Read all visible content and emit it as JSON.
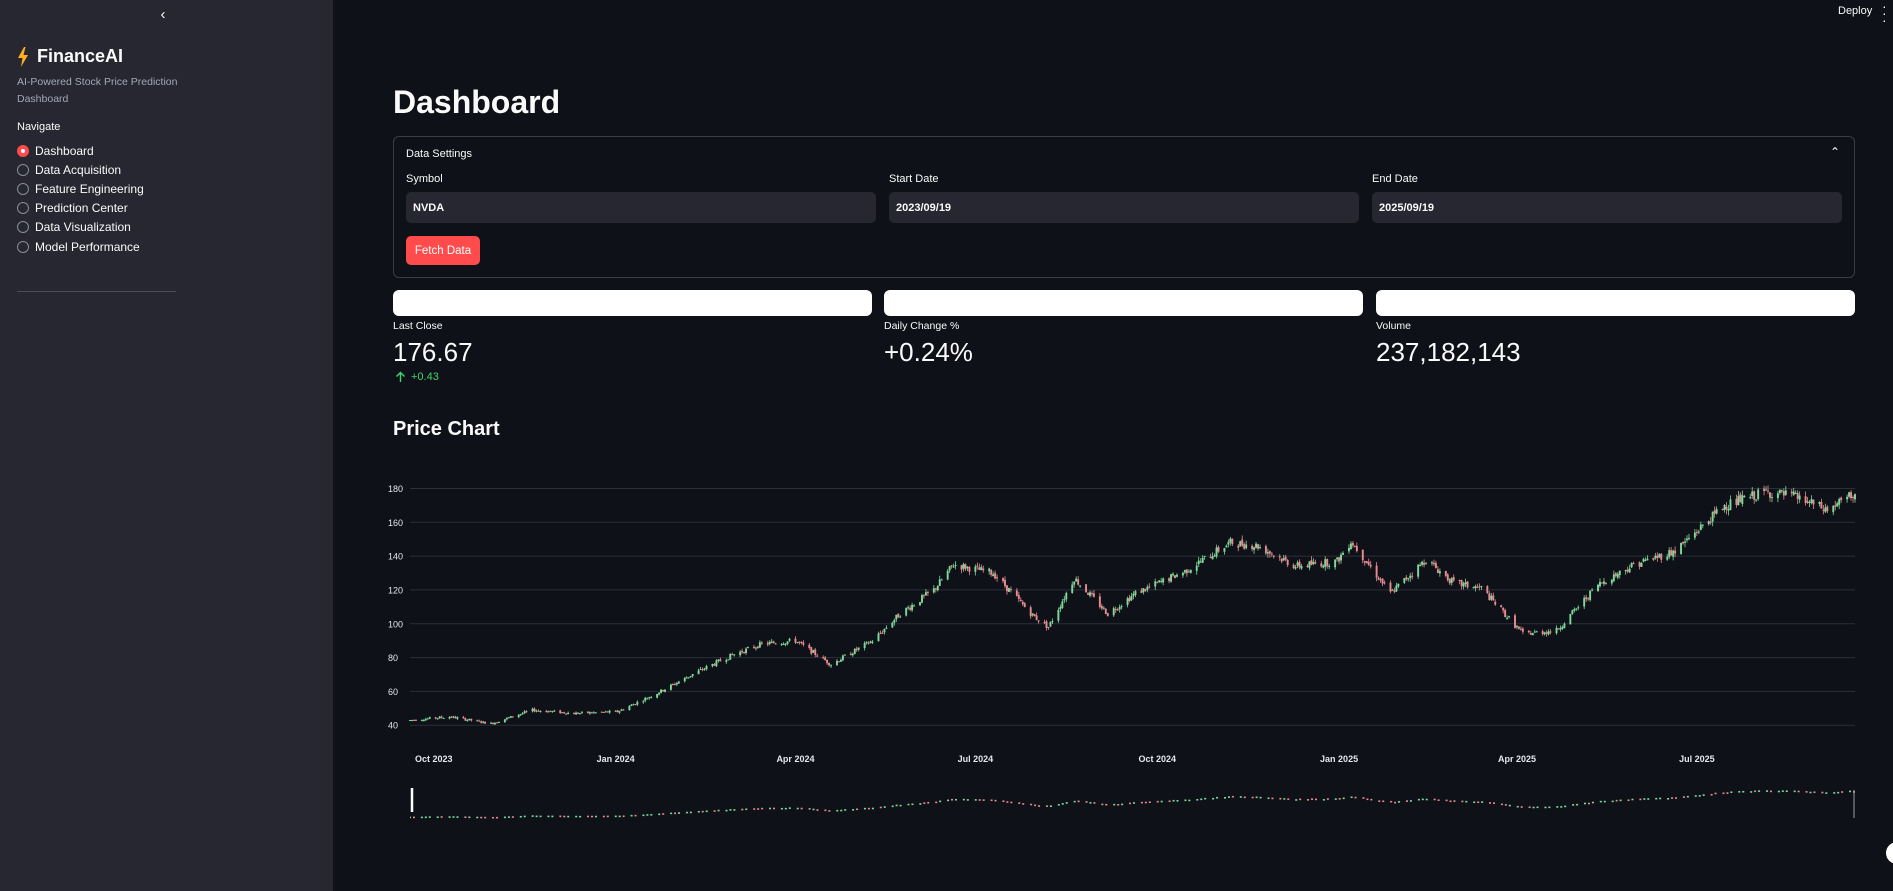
{
  "sidebar": {
    "brand_title": "FinanceAI",
    "brand_subtitle": "AI-Powered Stock Price Prediction Dashboard",
    "nav_label": "Navigate",
    "items": [
      {
        "label": "Dashboard",
        "selected": true
      },
      {
        "label": "Data Acquisition",
        "selected": false
      },
      {
        "label": "Feature Engineering",
        "selected": false
      },
      {
        "label": "Prediction Center",
        "selected": false
      },
      {
        "label": "Data Visualization",
        "selected": false
      },
      {
        "label": "Model Performance",
        "selected": false
      }
    ]
  },
  "header": {
    "deploy_label": "Deploy",
    "menu_icon": "kebab-icon"
  },
  "main": {
    "page_title": "Dashboard",
    "settings": {
      "title": "Data Settings",
      "symbol_label": "Symbol",
      "symbol_value": "NVDA",
      "start_label": "Start Date",
      "start_value": "2023/09/19",
      "end_label": "End Date",
      "end_value": "2025/09/19",
      "fetch_label": "Fetch Data"
    },
    "metrics": [
      {
        "label": "Last Close",
        "value": "176.67",
        "delta": "+0.43"
      },
      {
        "label": "Daily Change %",
        "value": "+0.24%"
      },
      {
        "label": "Volume",
        "value": "237,182,143"
      }
    ],
    "section_title": "Price Chart"
  },
  "colors": {
    "accent": "#ff4b4b",
    "up": "#7ed99b",
    "down": "#e88a8f",
    "delta": "#3dd56d"
  },
  "chart_data": {
    "type": "candlestick",
    "x_tick_labels": [
      "Oct 2023",
      "Jan 2024",
      "Apr 2024",
      "Jul 2024",
      "Oct 2024",
      "Jan 2025",
      "Apr 2025",
      "Jul 2025"
    ],
    "y_ticks": [
      40,
      60,
      80,
      100,
      120,
      140,
      160,
      180
    ],
    "ylim": [
      36,
      185
    ],
    "xlim": [
      "2023-09-19",
      "2025-09-19"
    ],
    "grid": true,
    "rangeslider": true,
    "close_series": [
      [
        "2023-09-19",
        43
      ],
      [
        "2023-10-09",
        45
      ],
      [
        "2023-10-30",
        41
      ],
      [
        "2023-11-20",
        49
      ],
      [
        "2023-12-11",
        47
      ],
      [
        "2024-01-02",
        48
      ],
      [
        "2024-01-22",
        59
      ],
      [
        "2024-02-12",
        72
      ],
      [
        "2024-03-01",
        82
      ],
      [
        "2024-03-15",
        88
      ],
      [
        "2024-04-01",
        90
      ],
      [
        "2024-04-19",
        76
      ],
      [
        "2024-05-10",
        90
      ],
      [
        "2024-05-24",
        106
      ],
      [
        "2024-06-10",
        120
      ],
      [
        "2024-06-20",
        135
      ],
      [
        "2024-07-10",
        130
      ],
      [
        "2024-07-30",
        105
      ],
      [
        "2024-08-07",
        98
      ],
      [
        "2024-08-20",
        127
      ],
      [
        "2024-09-06",
        106
      ],
      [
        "2024-09-20",
        118
      ],
      [
        "2024-10-15",
        131
      ],
      [
        "2024-11-07",
        148
      ],
      [
        "2024-11-21",
        146
      ],
      [
        "2024-12-10",
        134
      ],
      [
        "2024-12-31",
        137
      ],
      [
        "2025-01-07",
        149
      ],
      [
        "2025-01-27",
        118
      ],
      [
        "2025-02-14",
        138
      ],
      [
        "2025-02-28",
        124
      ],
      [
        "2025-03-14",
        121
      ],
      [
        "2025-04-04",
        94
      ],
      [
        "2025-04-21",
        96
      ],
      [
        "2025-05-12",
        123
      ],
      [
        "2025-05-30",
        135
      ],
      [
        "2025-06-20",
        143
      ],
      [
        "2025-07-15",
        170
      ],
      [
        "2025-08-05",
        178
      ],
      [
        "2025-08-20",
        175
      ],
      [
        "2025-09-05",
        167
      ],
      [
        "2025-09-19",
        177
      ]
    ]
  }
}
